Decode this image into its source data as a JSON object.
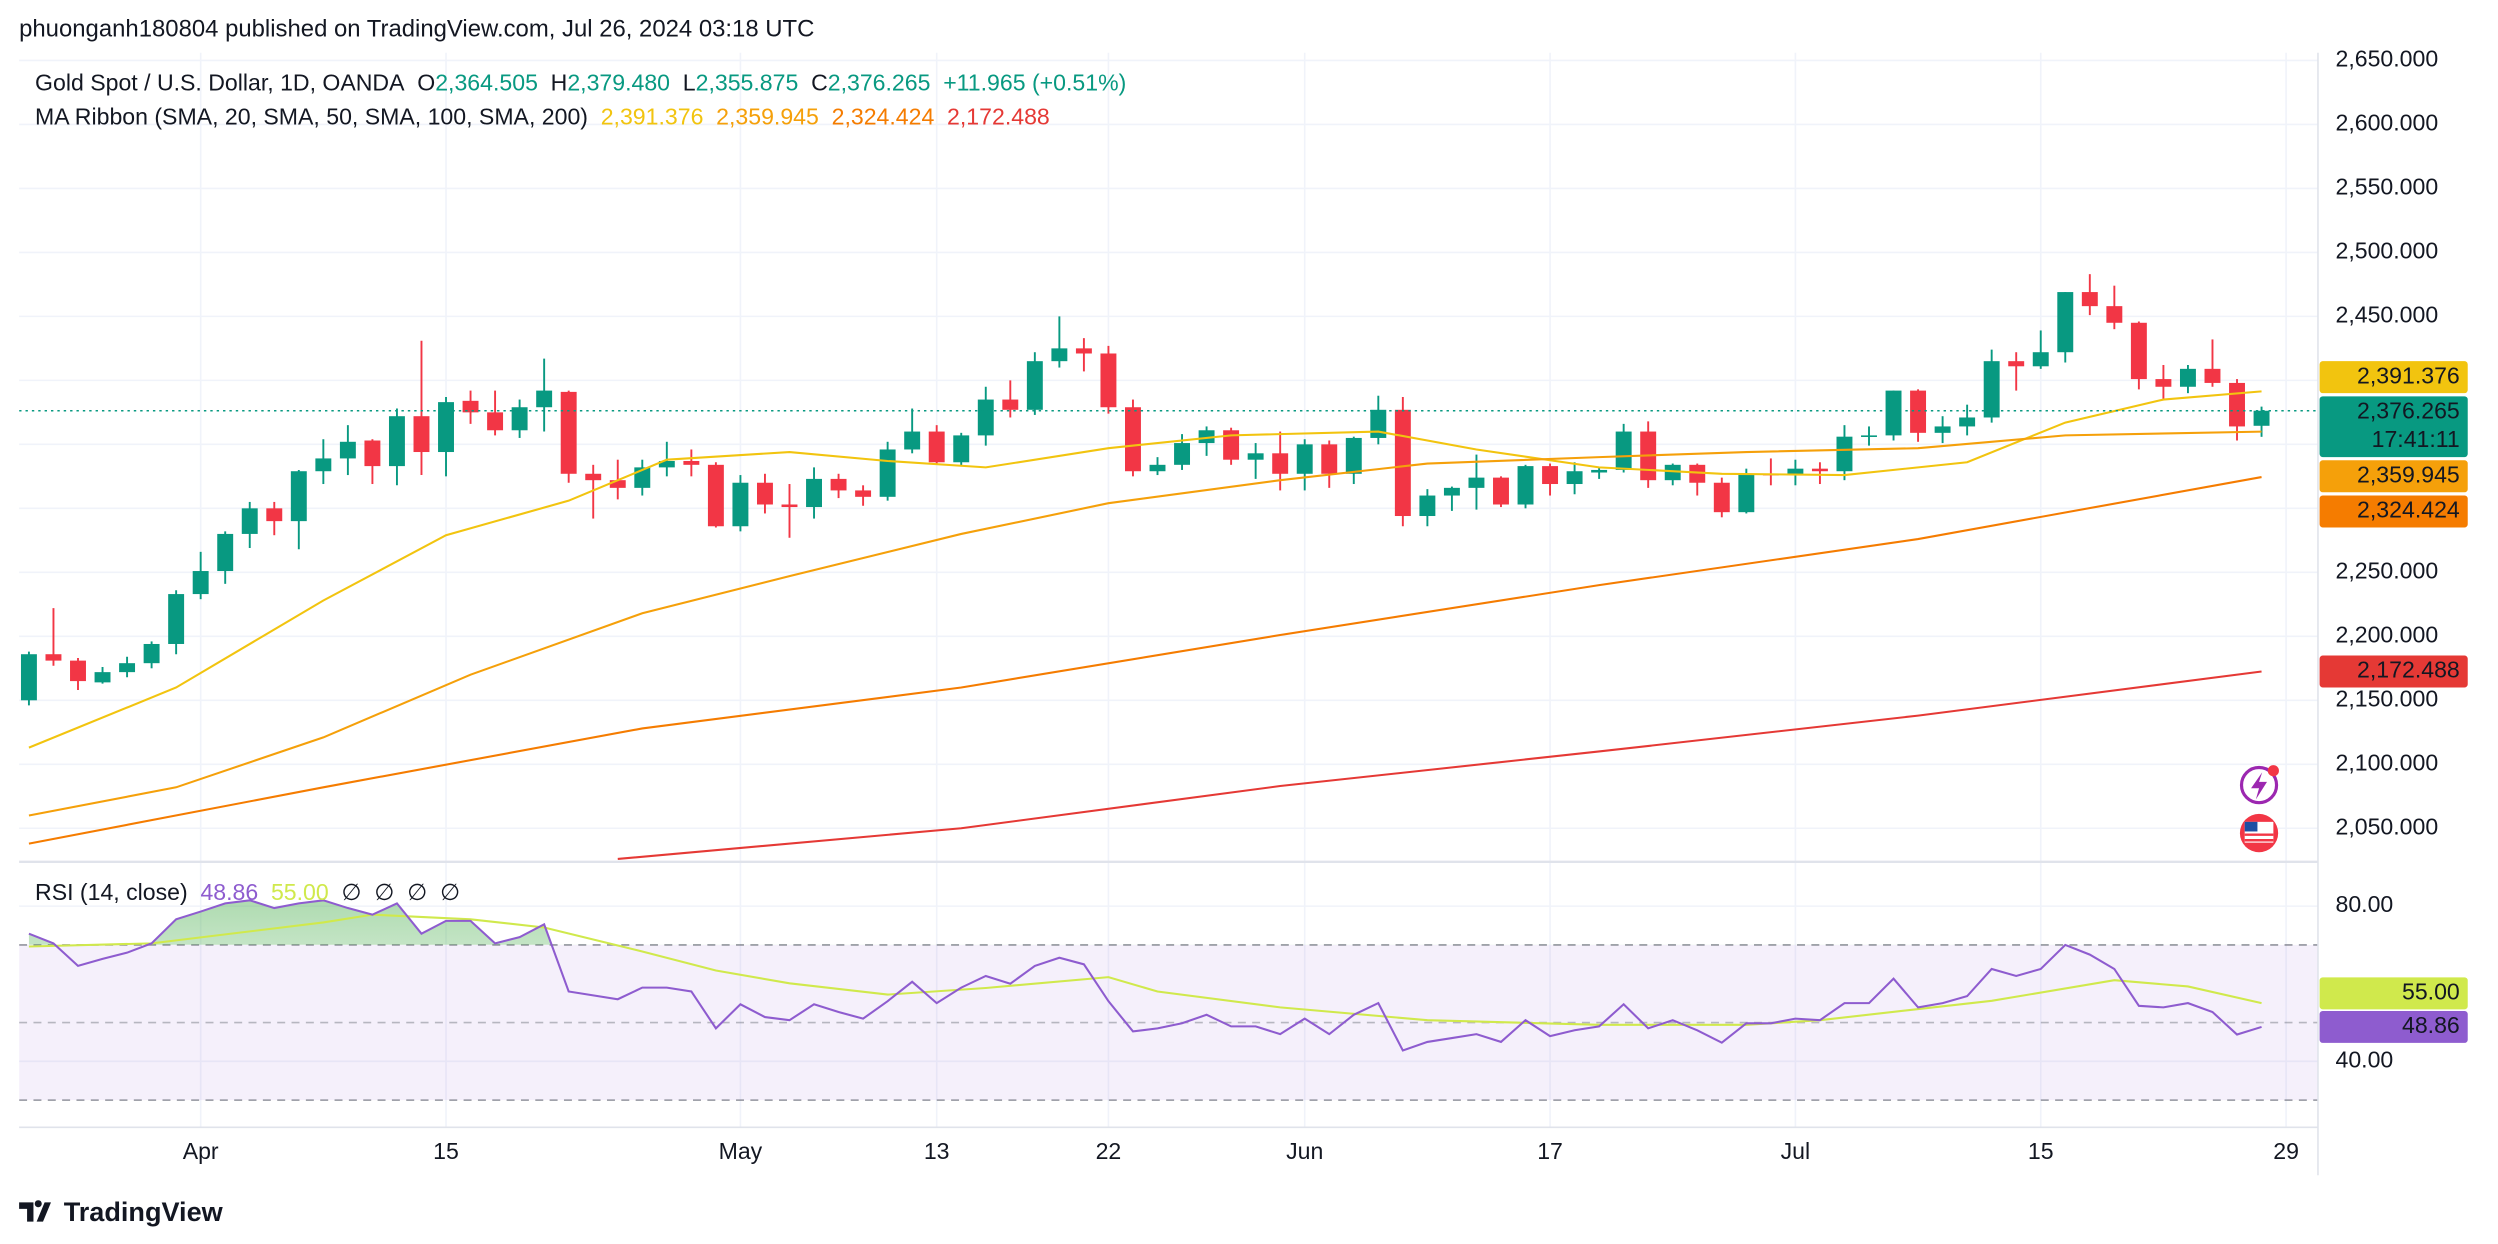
{
  "header": {
    "published": "phuonganh180804 published on TradingView.com, Jul 26, 2024 03:18 UTC"
  },
  "chart_data": [
    {
      "type": "candlestick",
      "title": "Gold Spot / U.S. Dollar, 1D, OANDA",
      "ohlc": [
        {
          "key": "O",
          "value": "2,364.505"
        },
        {
          "key": "H",
          "value": "2,379.480"
        },
        {
          "key": "L",
          "value": "2,355.875"
        },
        {
          "key": "C",
          "value": "2,376.265"
        }
      ],
      "change": "+11.965 (+0.51%)",
      "up_color": "#089981",
      "down_color": "#f23645",
      "open": [
        2150,
        2186,
        2181,
        2164,
        2172,
        2179,
        2194,
        2233,
        2251,
        2280,
        2300,
        2290,
        2329,
        2339,
        2353,
        2333,
        2372,
        2344,
        2384,
        2375,
        2361,
        2379,
        2391,
        2327,
        2322,
        2316,
        2332,
        2337,
        2334,
        2286,
        2320,
        2303,
        2301,
        2323,
        2314,
        2309,
        2346,
        2360,
        2336,
        2357,
        2385,
        2377,
        2415,
        2425,
        2421,
        2379,
        2329,
        2334,
        2351,
        2361,
        2338,
        2343,
        2327,
        2350,
        2327,
        2355,
        2377,
        2294,
        2310,
        2316,
        2324,
        2303,
        2333,
        2319,
        2328,
        2330,
        2360,
        2322,
        2334,
        2320,
        2297,
        2327,
        2326,
        2331,
        2329,
        2356,
        2357,
        2392,
        2359,
        2364,
        2371,
        2415,
        2411,
        2422,
        2469,
        2458,
        2445,
        2401,
        2395,
        2409,
        2398,
        2364.505
      ],
      "high": [
        2188,
        2222,
        2183,
        2176,
        2184,
        2196,
        2236,
        2266,
        2282,
        2305,
        2305,
        2330,
        2354,
        2365,
        2354,
        2378,
        2431,
        2387,
        2392,
        2392,
        2385,
        2417,
        2392,
        2334,
        2338,
        2338,
        2352,
        2346,
        2336,
        2326,
        2327,
        2319,
        2332,
        2327,
        2318,
        2352,
        2378,
        2365,
        2359,
        2395,
        2400,
        2422,
        2450,
        2433,
        2427,
        2385,
        2340,
        2358,
        2364,
        2363,
        2351,
        2360,
        2354,
        2353,
        2356,
        2388,
        2387,
        2315,
        2317,
        2342,
        2325,
        2334,
        2335,
        2336,
        2332,
        2366,
        2368,
        2335,
        2335,
        2324,
        2331,
        2339,
        2338,
        2336,
        2365,
        2364,
        2392,
        2393,
        2372,
        2381,
        2424,
        2422,
        2439,
        2469,
        2483,
        2474,
        2446,
        2412,
        2412,
        2432,
        2401,
        2379.48
      ],
      "low": [
        2146,
        2177,
        2158,
        2163,
        2168,
        2175,
        2186,
        2229,
        2241,
        2269,
        2279,
        2268,
        2319,
        2326,
        2319,
        2318,
        2326,
        2325,
        2366,
        2357,
        2355,
        2360,
        2320,
        2292,
        2307,
        2310,
        2325,
        2325,
        2285,
        2282,
        2296,
        2277,
        2292,
        2308,
        2302,
        2306,
        2343,
        2334,
        2333,
        2349,
        2371,
        2373,
        2410,
        2407,
        2374,
        2325,
        2326,
        2330,
        2341,
        2334,
        2323,
        2314,
        2314,
        2316,
        2319,
        2350,
        2286,
        2286,
        2298,
        2299,
        2301,
        2300,
        2310,
        2311,
        2323,
        2328,
        2316,
        2318,
        2310,
        2293,
        2296,
        2318,
        2318,
        2319,
        2322,
        2349,
        2353,
        2352,
        2351,
        2357,
        2367,
        2392,
        2409,
        2414,
        2451,
        2440,
        2393,
        2385,
        2390,
        2395,
        2353,
        2355.875
      ],
      "close": [
        2186,
        2181,
        2165,
        2172,
        2179,
        2194,
        2233,
        2251,
        2280,
        2300,
        2290,
        2329,
        2339,
        2352,
        2333,
        2372,
        2344,
        2383,
        2375,
        2361,
        2379,
        2392,
        2327,
        2322,
        2316,
        2332,
        2337,
        2334,
        2286,
        2320,
        2303,
        2301,
        2323,
        2314,
        2309,
        2346,
        2360,
        2336,
        2357,
        2385,
        2377,
        2415,
        2425,
        2421,
        2379,
        2329,
        2334,
        2351,
        2361,
        2338,
        2343,
        2327,
        2350,
        2327,
        2355,
        2377,
        2294,
        2310,
        2316,
        2324,
        2303,
        2333,
        2319,
        2329,
        2330,
        2360,
        2322,
        2334,
        2320,
        2297,
        2327,
        2326,
        2331,
        2329,
        2356,
        2357,
        2392,
        2359,
        2364,
        2371,
        2415,
        2411,
        2422,
        2469,
        2458,
        2445,
        2401,
        2395,
        2409,
        2398,
        2364,
        2376.265
      ],
      "last_price": {
        "value": 2376.265,
        "label": "2,376.265",
        "countdown": "17:41:11"
      },
      "indicator": "MA Ribbon (SMA, 20, SMA, 50, SMA, 100, SMA, 200)",
      "series": [
        {
          "color": "#f2c40f",
          "last_label": "2,391.376",
          "x": [
            0,
            6,
            12,
            17,
            22,
            26,
            31,
            35,
            39,
            44,
            49,
            55,
            59,
            64,
            69,
            74,
            79,
            83,
            87,
            91
          ],
          "values": [
            2113,
            2160,
            2228,
            2279,
            2306,
            2338,
            2344,
            2337,
            2332,
            2347,
            2357,
            2360,
            2346,
            2332,
            2327,
            2326,
            2336,
            2367,
            2385,
            2391.376
          ]
        },
        {
          "color": "#f5a00a",
          "last_label": "2,359.945",
          "x": [
            0,
            6,
            12,
            18,
            25,
            31,
            38,
            44,
            51,
            57,
            64,
            70,
            77,
            83,
            91
          ],
          "values": [
            2060,
            2082,
            2121,
            2170,
            2218,
            2247,
            2280,
            2304,
            2322,
            2335,
            2340,
            2344,
            2347,
            2357,
            2359.945
          ]
        },
        {
          "color": "#f57c00",
          "last_label": "2,324.424",
          "x": [
            0,
            12,
            25,
            38,
            51,
            64,
            77,
            91
          ],
          "values": [
            2038,
            2082,
            2128,
            2160,
            2201,
            2240,
            2276,
            2324.424
          ]
        },
        {
          "color": "#e53935",
          "last_label": "2,172.488",
          "x": [
            24,
            38,
            51,
            64,
            77,
            91
          ],
          "values": [
            2026,
            2050,
            2083,
            2110,
            2138,
            2172.488
          ]
        }
      ],
      "xlim": [
        -0.4,
        93.3
      ],
      "xticks": [
        {
          "value": 7,
          "label": "Apr"
        },
        {
          "value": 17,
          "label": "15"
        },
        {
          "value": 29,
          "label": "May"
        },
        {
          "value": 37,
          "label": "13"
        },
        {
          "value": 44,
          "label": "22"
        },
        {
          "value": 52,
          "label": "Jun"
        },
        {
          "value": 62,
          "label": "17"
        },
        {
          "value": 72,
          "label": "Jul"
        },
        {
          "value": 82,
          "label": "15"
        },
        {
          "value": 92,
          "label": "29"
        }
      ],
      "ylim": [
        2025,
        2656
      ],
      "yticks": [
        {
          "value": 2050,
          "label": "2,050.000"
        },
        {
          "value": 2100,
          "label": "2,100.000"
        },
        {
          "value": 2150,
          "label": "2,150.000"
        },
        {
          "value": 2200,
          "label": "2,200.000"
        },
        {
          "value": 2250,
          "label": "2,250.000"
        },
        {
          "value": 2300,
          "label": "2,300.000"
        },
        {
          "value": 2350,
          "label": "2,350.000"
        },
        {
          "value": 2400,
          "label": "2,400.000"
        },
        {
          "value": 2450,
          "label": "2,450.000"
        },
        {
          "value": 2500,
          "label": "2,500.000"
        },
        {
          "value": 2550,
          "label": "2,550.000"
        },
        {
          "value": 2600,
          "label": "2,600.000"
        },
        {
          "value": 2650,
          "label": "2,650.000"
        }
      ],
      "grid": true
    },
    {
      "type": "line",
      "title": "RSI (14, close)",
      "color": "#8e5ccf",
      "values": [
        72.9,
        70.4,
        64.6,
        66.4,
        68,
        70.4,
        76.6,
        78.6,
        80.7,
        81.5,
        79.5,
        80.7,
        81.5,
        79.5,
        77.8,
        80.7,
        72.9,
        76.2,
        76.2,
        70.4,
        72,
        75.3,
        58,
        57,
        56,
        59,
        59,
        58,
        48.5,
        54.7,
        51.4,
        50.6,
        54.7,
        52.7,
        51,
        55.5,
        60.5,
        55,
        59,
        62,
        60,
        64.6,
        66.7,
        65,
        55.5,
        47.7,
        48.5,
        49.8,
        52,
        49,
        49,
        47,
        51,
        47,
        52,
        55,
        42.8,
        45,
        46,
        47,
        45,
        50.6,
        46.5,
        48,
        49,
        54.7,
        48.5,
        50.6,
        48,
        44.8,
        49.8,
        49.8,
        51,
        50.6,
        55,
        55,
        61.3,
        53.9,
        55,
        56.8,
        63.8,
        62,
        63.8,
        70,
        67.5,
        63.8,
        54.3,
        53.9,
        55,
        52.7,
        46.9,
        48.86
      ],
      "value_label": "48.86",
      "ma": {
        "color": "#d0e94c",
        "label": "55.00",
        "x": [
          0,
          5,
          12,
          14,
          18,
          21,
          25,
          28,
          31,
          35,
          39,
          44,
          46,
          51,
          57,
          64,
          70,
          73,
          80,
          85,
          88,
          91
        ],
        "values": [
          69.6,
          70.4,
          75.8,
          77.8,
          76.6,
          74.5,
          68.3,
          63.4,
          60.1,
          57.2,
          58.9,
          61.7,
          58,
          53.9,
          50.6,
          49.4,
          49.4,
          50.6,
          55.6,
          60.9,
          59.3,
          55.0
        ]
      },
      "placeholders": [
        "∅",
        "∅",
        "∅",
        "∅"
      ],
      "levels": [
        70,
        50,
        30
      ],
      "overbought_color": "#4caf50",
      "ylim": [
        23,
        91
      ],
      "yticks": [
        {
          "value": 40,
          "label": "40.00"
        },
        {
          "value": 80,
          "label": "80.00"
        }
      ]
    }
  ],
  "footer": {
    "brand": "TradingView"
  }
}
